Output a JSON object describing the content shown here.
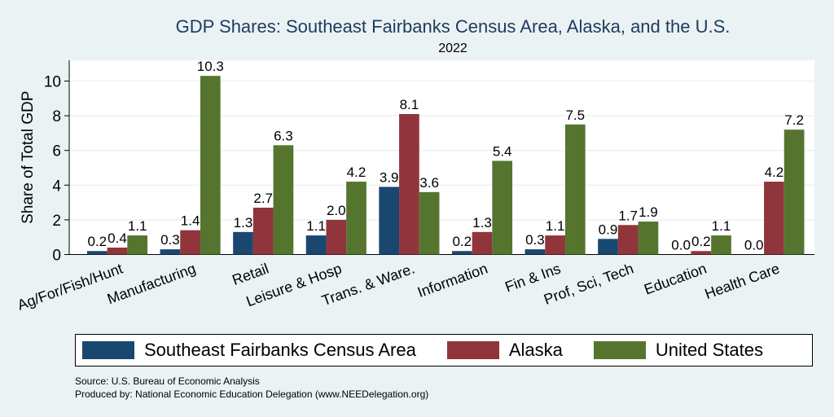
{
  "chart_data": {
    "type": "bar",
    "title": "GDP Shares: Southeast Fairbanks Census Area, Alaska, and the U.S.",
    "subtitle": "2022",
    "ylabel": "Share of Total GDP",
    "xlabel": "",
    "ylim": [
      0,
      11.2
    ],
    "yticks": [
      0,
      2,
      4,
      6,
      8,
      10
    ],
    "grid": true,
    "legend_position": "bottom",
    "categories": [
      "Ag/For/Fish/Hunt",
      "Manufacturing",
      "Retail",
      "Leisure & Hosp",
      "Trans. & Ware.",
      "Information",
      "Fin & Ins",
      "Prof, Sci, Tech",
      "Education",
      "Health Care"
    ],
    "series": [
      {
        "name": "Southeast Fairbanks Census Area",
        "color": "#1a476f",
        "values": [
          0.2,
          0.3,
          1.3,
          1.1,
          3.9,
          0.2,
          0.3,
          0.9,
          0.0,
          0.0
        ]
      },
      {
        "name": "Alaska",
        "color": "#90353b",
        "values": [
          0.4,
          1.4,
          2.7,
          2.0,
          8.1,
          1.3,
          1.1,
          1.7,
          0.2,
          4.2
        ]
      },
      {
        "name": "United States",
        "color": "#55752f",
        "values": [
          1.1,
          10.3,
          6.3,
          4.2,
          3.6,
          5.4,
          7.5,
          1.9,
          1.1,
          7.2
        ]
      }
    ]
  },
  "source": "Source: U.S. Bureau of Economic Analysis",
  "produced_by": "Produced by: National Economic Education Delegation (www.NEEDelegation.org)"
}
